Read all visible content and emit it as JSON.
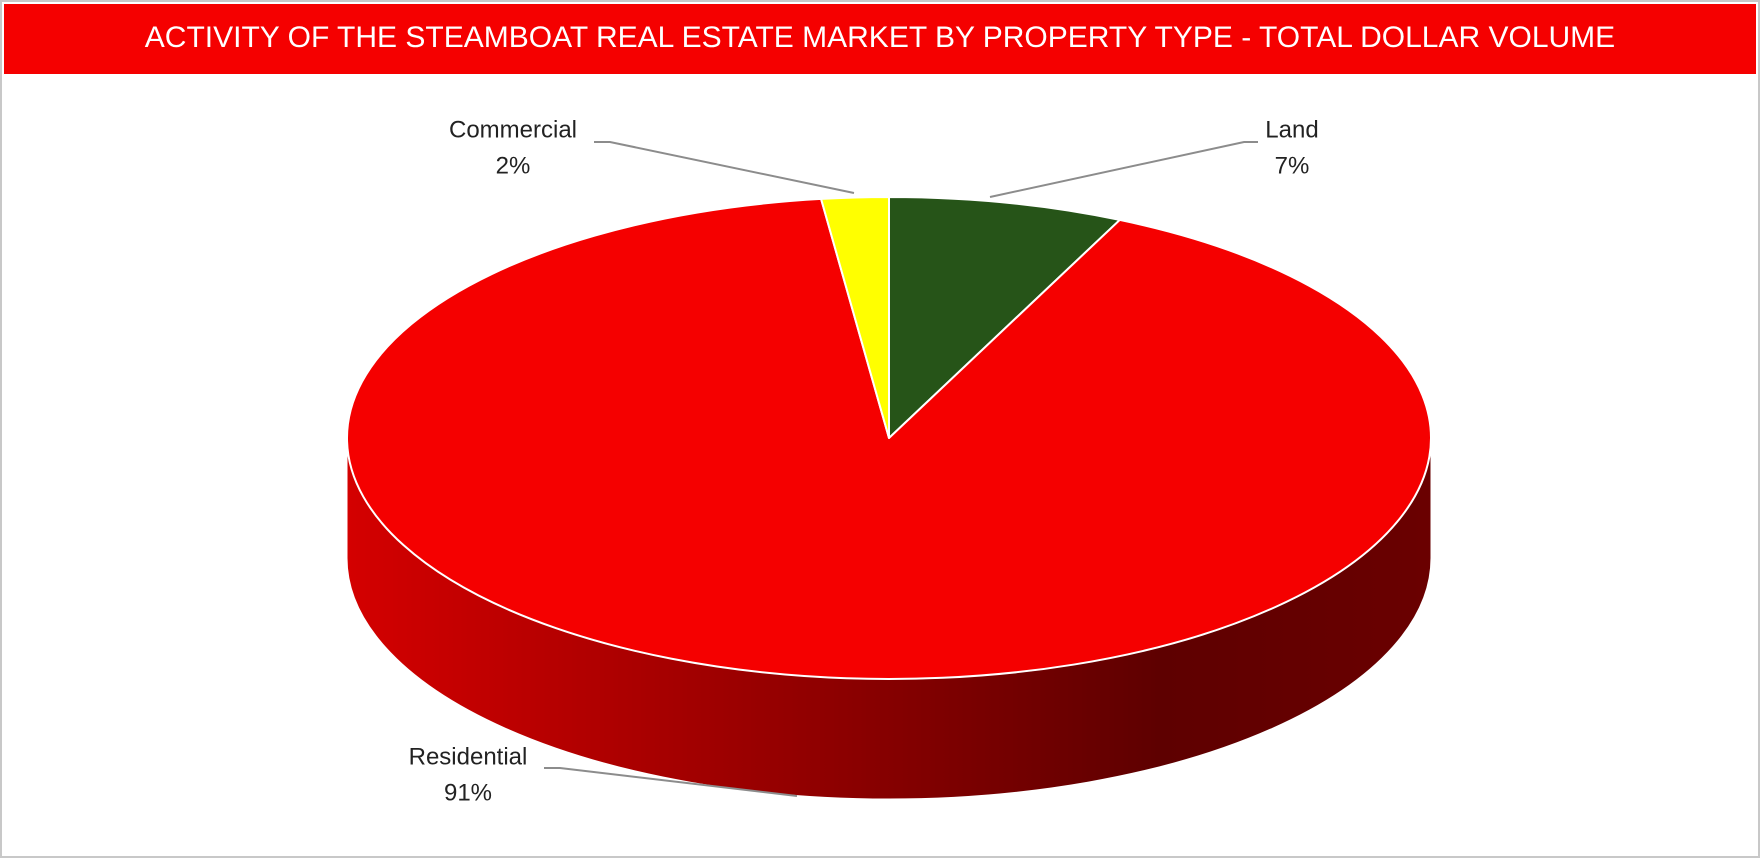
{
  "chart_data": {
    "type": "pie3d",
    "title": "ACTIVITY OF THE STEAMBOAT REAL ESTATE MARKET BY PROPERTY TYPE - TOTAL DOLLAR VOLUME",
    "categories": [
      "Land",
      "Residential",
      "Commercial"
    ],
    "values": [
      7,
      91,
      2
    ],
    "value_labels": [
      "7%",
      "91%",
      "2%"
    ],
    "colors": [
      "#265418",
      "#f50000",
      "#ffff00"
    ]
  }
}
